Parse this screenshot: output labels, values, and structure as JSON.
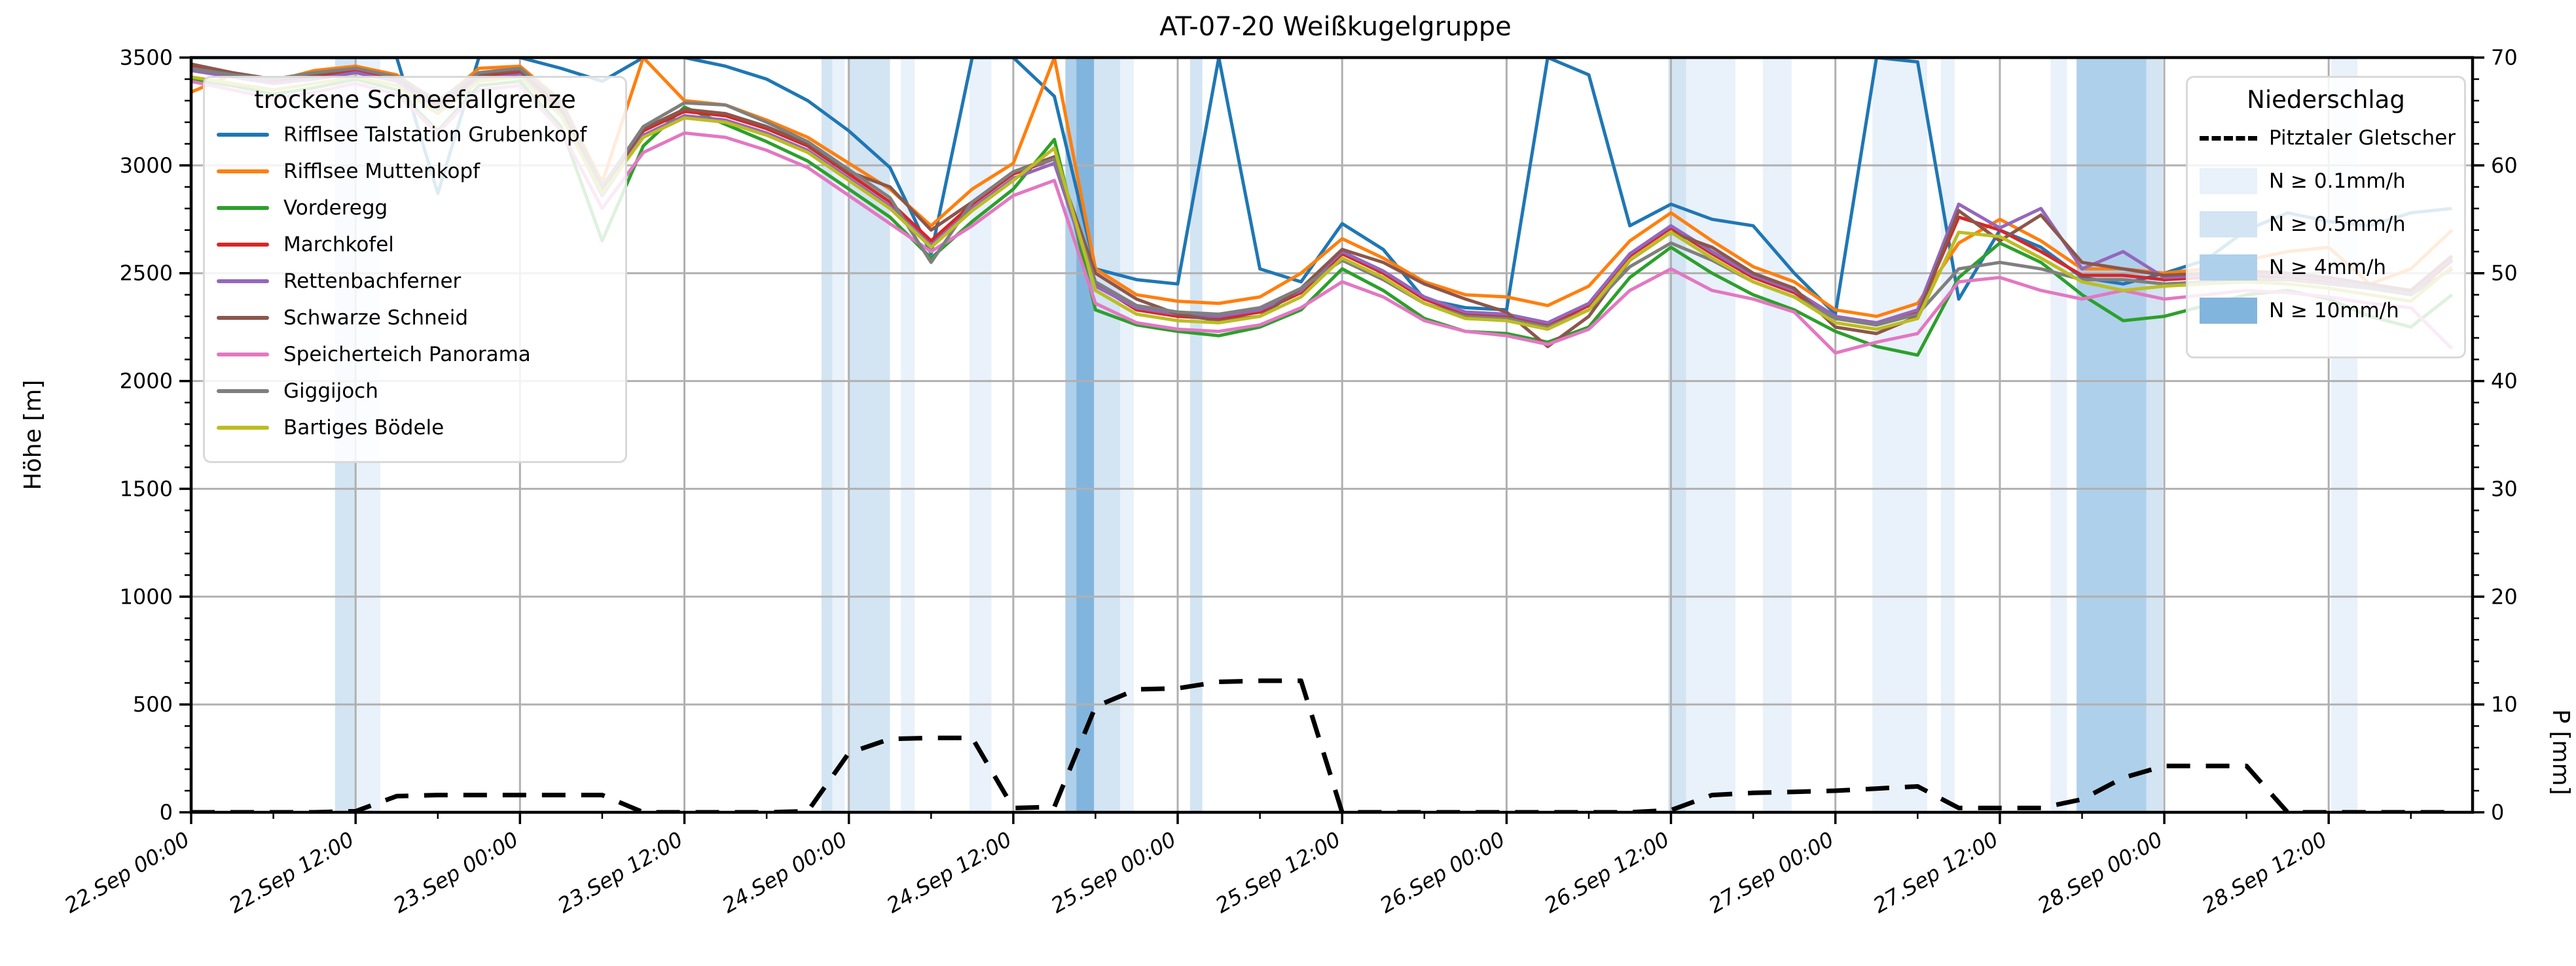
{
  "title": "AT-07-20 Weißkugelgruppe",
  "legend_snowline": {
    "title": "trockene Schneefallgrenze",
    "items": [
      {
        "label": "Rifflsee Talstation Grubenkopf",
        "color": "#1f77b4"
      },
      {
        "label": "Rifflsee Muttenkopf",
        "color": "#ff7f0e"
      },
      {
        "label": "Vorderegg",
        "color": "#2ca02c"
      },
      {
        "label": "Marchkofel",
        "color": "#d62728"
      },
      {
        "label": "Rettenbachferner",
        "color": "#9467bd"
      },
      {
        "label": "Schwarze Schneid",
        "color": "#8c564b"
      },
      {
        "label": "Speicherteich Panorama",
        "color": "#e377c2"
      },
      {
        "label": "Giggijoch",
        "color": "#7f7f7f"
      },
      {
        "label": "Bartiges Bödele",
        "color": "#bcbd22"
      }
    ]
  },
  "legend_precip": {
    "title": "Niederschlag",
    "line_item": {
      "label": "Pitztaler Gletscher",
      "color": "#000000",
      "style": "dashed"
    },
    "levels": [
      {
        "label": "N ≥ 0.1mm/h",
        "color": "#e9f1fa"
      },
      {
        "label": "N ≥ 0.5mm/h",
        "color": "#d3e4f3"
      },
      {
        "label": "N ≥ 4mm/h",
        "color": "#afd0ea"
      },
      {
        "label": "N ≥ 10mm/h",
        "color": "#82b5dd"
      }
    ]
  },
  "chart_data": {
    "type": "line",
    "title": "AT-07-20 Weißkugelgruppe",
    "x_axis": {
      "tick_hours": [
        0,
        12,
        24,
        36,
        48,
        60,
        72,
        84,
        96,
        108,
        120,
        132,
        144,
        156
      ],
      "tick_labels": [
        "22.Sep 00:00",
        "22.Sep 12:00",
        "23.Sep 00:00",
        "23.Sep 12:00",
        "24.Sep 00:00",
        "24.Sep 12:00",
        "25.Sep 00:00",
        "25.Sep 12:00",
        "26.Sep 00:00",
        "26.Sep 12:00",
        "27.Sep 00:00",
        "27.Sep 12:00",
        "28.Sep 00:00",
        "28.Sep 12:00"
      ],
      "minor_tick_every_h": 6,
      "x_hours_max": 166.5,
      "sample_hours_step": 3
    },
    "y_left": {
      "label": "Höhe [m]",
      "ticks": [
        0,
        500,
        1000,
        1500,
        2000,
        2500,
        3000,
        3500
      ],
      "lim": [
        0,
        3500
      ],
      "minor_every": 100
    },
    "y_right": {
      "label": "P [mm]",
      "ticks": [
        0,
        10,
        20,
        30,
        40,
        50,
        60,
        70
      ],
      "lim": [
        0,
        70
      ],
      "minor_every": 2
    },
    "grid": true,
    "grid_color": "#b0b0b0",
    "series": [
      {
        "name": "Rifflsee Talstation Grubenkopf",
        "color": "#1f77b4",
        "axis": "left",
        "values": [
          3500,
          3500,
          3500,
          3500,
          3500,
          3500,
          2870,
          3500,
          3500,
          3450,
          3390,
          3500,
          3500,
          3460,
          3400,
          3300,
          3160,
          2990,
          2590,
          3500,
          3500,
          3320,
          2520,
          2470,
          2450,
          3500,
          2520,
          2460,
          2730,
          2610,
          2380,
          2340,
          2330,
          3500,
          3420,
          2720,
          2820,
          2750,
          2720,
          2500,
          2310,
          3500,
          3480,
          2380,
          2700,
          2620,
          2480,
          2450,
          2500,
          2560,
          2700,
          2780,
          2740,
          2720,
          2780,
          2800
        ]
      },
      {
        "name": "Rifflsee Muttenkopf",
        "color": "#ff7f0e",
        "axis": "left",
        "values": [
          3340,
          3420,
          3390,
          3440,
          3460,
          3420,
          3290,
          3450,
          3460,
          3300,
          2920,
          3500,
          3300,
          3280,
          3210,
          3130,
          3010,
          2890,
          2720,
          2890,
          3010,
          3500,
          2520,
          2400,
          2370,
          2360,
          2390,
          2500,
          2660,
          2570,
          2460,
          2400,
          2390,
          2350,
          2440,
          2650,
          2780,
          2650,
          2530,
          2460,
          2330,
          2300,
          2360,
          2640,
          2750,
          2650,
          2520,
          2520,
          2500,
          2520,
          2560,
          2600,
          2620,
          2450,
          2520,
          2700
        ]
      },
      {
        "name": "Vorderegg",
        "color": "#2ca02c",
        "axis": "left",
        "values": [
          3400,
          3370,
          3330,
          3360,
          3400,
          3350,
          3160,
          3370,
          3390,
          3180,
          2650,
          3090,
          3270,
          3190,
          3110,
          3020,
          2890,
          2760,
          2570,
          2740,
          2890,
          3120,
          2330,
          2260,
          2230,
          2210,
          2250,
          2330,
          2520,
          2420,
          2290,
          2230,
          2220,
          2180,
          2250,
          2480,
          2620,
          2500,
          2400,
          2330,
          2230,
          2160,
          2120,
          2480,
          2640,
          2550,
          2400,
          2280,
          2300,
          2350,
          2400,
          2420,
          2380,
          2300,
          2250,
          2400
        ]
      },
      {
        "name": "Marchkofel",
        "color": "#d62728",
        "axis": "left",
        "values": [
          3460,
          3420,
          3390,
          3410,
          3440,
          3400,
          3270,
          3410,
          3430,
          3260,
          2880,
          3160,
          3250,
          3230,
          3170,
          3090,
          2960,
          2830,
          2650,
          2820,
          2960,
          3030,
          2450,
          2330,
          2300,
          2290,
          2320,
          2410,
          2590,
          2500,
          2380,
          2310,
          2300,
          2260,
          2350,
          2580,
          2710,
          2590,
          2480,
          2410,
          2290,
          2260,
          2320,
          2760,
          2700,
          2600,
          2490,
          2490,
          2470,
          2480,
          2490,
          2480,
          2460,
          2430,
          2400,
          2560
        ]
      },
      {
        "name": "Rettenbachferner",
        "color": "#9467bd",
        "axis": "left",
        "values": [
          3440,
          3410,
          3380,
          3400,
          3430,
          3390,
          3260,
          3400,
          3420,
          3240,
          2860,
          3140,
          3230,
          3210,
          3150,
          3070,
          2940,
          2810,
          2630,
          2800,
          2940,
          3010,
          2440,
          2340,
          2310,
          2300,
          2330,
          2420,
          2600,
          2510,
          2390,
          2320,
          2310,
          2270,
          2360,
          2590,
          2720,
          2600,
          2490,
          2420,
          2300,
          2270,
          2330,
          2820,
          2710,
          2800,
          2520,
          2600,
          2480,
          2490,
          2500,
          2490,
          2470,
          2440,
          2410,
          2570
        ]
      },
      {
        "name": "Schwarze Schneid",
        "color": "#8c564b",
        "axis": "left",
        "values": [
          3470,
          3430,
          3400,
          3420,
          3450,
          3410,
          3280,
          3420,
          3440,
          3270,
          2890,
          3170,
          3260,
          3240,
          3180,
          3100,
          2970,
          2900,
          2700,
          2830,
          2970,
          3040,
          2500,
          2380,
          2310,
          2280,
          2300,
          2430,
          2610,
          2550,
          2450,
          2380,
          2320,
          2160,
          2300,
          2560,
          2690,
          2620,
          2500,
          2430,
          2250,
          2220,
          2300,
          2790,
          2650,
          2770,
          2550,
          2520,
          2490,
          2500,
          2510,
          2500,
          2480,
          2450,
          2420,
          2580
        ]
      },
      {
        "name": "Speicherteich Panorama",
        "color": "#e377c2",
        "axis": "left",
        "values": [
          3390,
          3350,
          3310,
          3340,
          3380,
          3330,
          3150,
          3350,
          3370,
          3160,
          2800,
          3060,
          3150,
          3130,
          3070,
          2990,
          2860,
          2730,
          2600,
          2720,
          2860,
          2930,
          2360,
          2270,
          2240,
          2230,
          2260,
          2340,
          2460,
          2390,
          2280,
          2230,
          2210,
          2170,
          2240,
          2420,
          2520,
          2420,
          2380,
          2320,
          2130,
          2180,
          2220,
          2460,
          2480,
          2420,
          2380,
          2420,
          2380,
          2400,
          2420,
          2410,
          2390,
          2360,
          2340,
          2150
        ]
      },
      {
        "name": "Giggijoch",
        "color": "#7f7f7f",
        "axis": "left",
        "values": [
          3450,
          3420,
          3400,
          3430,
          3450,
          3410,
          3300,
          3430,
          3450,
          3290,
          2900,
          3180,
          3290,
          3280,
          3200,
          3110,
          2980,
          2850,
          2550,
          2830,
          2970,
          3030,
          2460,
          2350,
          2320,
          2310,
          2340,
          2430,
          2560,
          2470,
          2360,
          2300,
          2290,
          2250,
          2330,
          2530,
          2640,
          2560,
          2460,
          2390,
          2290,
          2260,
          2310,
          2520,
          2550,
          2520,
          2470,
          2470,
          2450,
          2460,
          2470,
          2470,
          2450,
          2430,
          2400,
          2520
        ]
      },
      {
        "name": "Bartiges Bödele",
        "color": "#bcbd22",
        "axis": "left",
        "values": [
          3410,
          3380,
          3350,
          3380,
          3410,
          3370,
          3240,
          3390,
          3410,
          3230,
          2870,
          3130,
          3220,
          3200,
          3140,
          3060,
          2930,
          2800,
          2620,
          2790,
          2930,
          3080,
          2420,
          2310,
          2280,
          2270,
          2300,
          2390,
          2570,
          2480,
          2360,
          2290,
          2280,
          2240,
          2330,
          2560,
          2690,
          2570,
          2460,
          2390,
          2270,
          2240,
          2290,
          2690,
          2670,
          2570,
          2460,
          2420,
          2440,
          2450,
          2460,
          2450,
          2430,
          2400,
          2370,
          2530
        ]
      }
    ],
    "precipitation": {
      "name": "Pitztaler Gletscher",
      "color": "#000000",
      "style": "dashed",
      "axis": "right",
      "values_mm": [
        0,
        0,
        0,
        0,
        0.1,
        1.5,
        1.6,
        1.6,
        1.6,
        1.6,
        1.6,
        0,
        0,
        0,
        0,
        0.1,
        5.5,
        6.8,
        6.9,
        6.9,
        0.4,
        0.5,
        9.8,
        11.4,
        11.5,
        12.1,
        12.2,
        12.2,
        0,
        0,
        0,
        0,
        0,
        0,
        0,
        0,
        0.2,
        1.6,
        1.8,
        1.9,
        2.0,
        2.2,
        2.4,
        0.4,
        0.4,
        0.4,
        1.2,
        3.2,
        4.3,
        4.3,
        4.3,
        0,
        0,
        0,
        0,
        0
      ]
    },
    "precip_bands": [
      {
        "from_h": 10.5,
        "to_h": 12.0,
        "level": "0.5"
      },
      {
        "from_h": 12.0,
        "to_h": 13.8,
        "level": "0.1"
      },
      {
        "from_h": 46.0,
        "to_h": 46.8,
        "level": "0.5"
      },
      {
        "from_h": 46.8,
        "to_h": 47.7,
        "level": "0.1"
      },
      {
        "from_h": 47.9,
        "to_h": 51.0,
        "level": "0.5"
      },
      {
        "from_h": 51.8,
        "to_h": 52.8,
        "level": "0.1"
      },
      {
        "from_h": 56.8,
        "to_h": 58.4,
        "level": "0.1"
      },
      {
        "from_h": 63.8,
        "to_h": 64.6,
        "level": "4"
      },
      {
        "from_h": 64.6,
        "to_h": 65.9,
        "level": "10"
      },
      {
        "from_h": 65.9,
        "to_h": 67.8,
        "level": "0.5"
      },
      {
        "from_h": 67.8,
        "to_h": 68.8,
        "level": "0.1"
      },
      {
        "from_h": 72.9,
        "to_h": 73.8,
        "level": "0.5"
      },
      {
        "from_h": 107.8,
        "to_h": 109.1,
        "level": "0.5"
      },
      {
        "from_h": 109.1,
        "to_h": 112.7,
        "level": "0.1"
      },
      {
        "from_h": 114.7,
        "to_h": 116.8,
        "level": "0.1"
      },
      {
        "from_h": 122.7,
        "to_h": 126.7,
        "level": "0.1"
      },
      {
        "from_h": 127.7,
        "to_h": 128.7,
        "level": "0.1"
      },
      {
        "from_h": 135.7,
        "to_h": 136.9,
        "level": "0.1"
      },
      {
        "from_h": 137.6,
        "to_h": 142.7,
        "level": "4"
      },
      {
        "from_h": 142.7,
        "to_h": 143.9,
        "level": "0.5"
      },
      {
        "from_h": 156.2,
        "to_h": 158.1,
        "level": "0.1"
      }
    ],
    "band_colors": {
      "0.1": "#e9f1fa",
      "0.5": "#d3e4f3",
      "4": "#afd0ea",
      "10": "#82b5dd"
    }
  }
}
